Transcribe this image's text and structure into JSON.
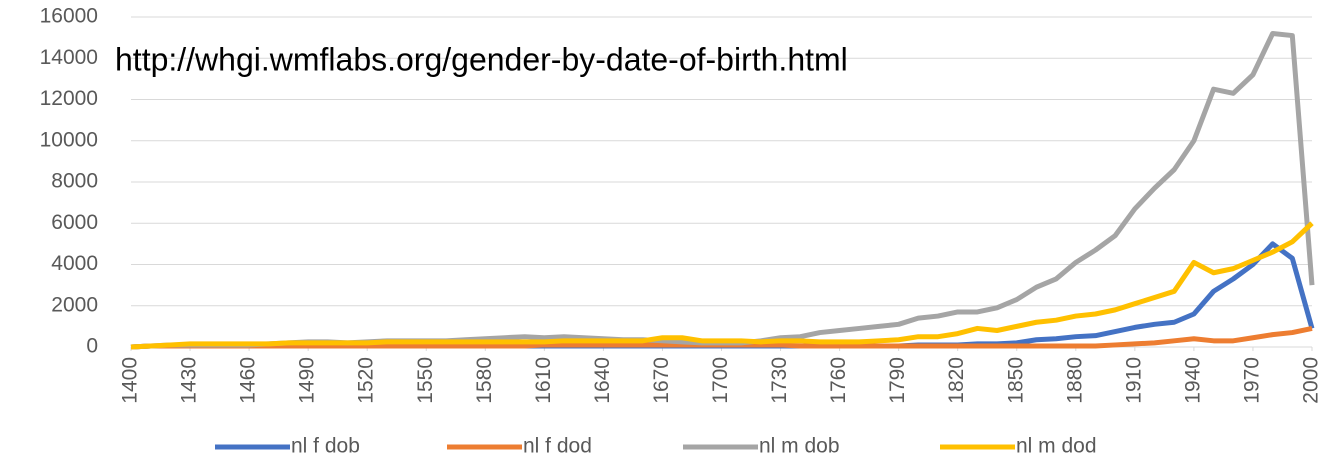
{
  "chart_data": {
    "type": "line",
    "annotation": "http://whgi.wmflabs.org/gender-by-date-of-birth.html",
    "x": [
      1400,
      1410,
      1420,
      1430,
      1440,
      1450,
      1460,
      1470,
      1480,
      1490,
      1500,
      1510,
      1520,
      1530,
      1540,
      1550,
      1560,
      1570,
      1580,
      1590,
      1600,
      1610,
      1620,
      1630,
      1640,
      1650,
      1660,
      1670,
      1680,
      1690,
      1700,
      1710,
      1720,
      1730,
      1740,
      1750,
      1760,
      1770,
      1780,
      1790,
      1800,
      1810,
      1820,
      1830,
      1840,
      1850,
      1860,
      1870,
      1880,
      1890,
      1900,
      1910,
      1920,
      1930,
      1940,
      1950,
      1960,
      1970,
      1980,
      1990,
      2000
    ],
    "series": [
      {
        "name": "nl f dob",
        "color": "#4472c4",
        "values": [
          0,
          50,
          50,
          50,
          50,
          50,
          50,
          50,
          50,
          50,
          50,
          50,
          50,
          50,
          50,
          50,
          50,
          50,
          50,
          50,
          50,
          50,
          50,
          50,
          50,
          50,
          50,
          50,
          50,
          50,
          50,
          50,
          50,
          50,
          50,
          50,
          50,
          50,
          50,
          50,
          100,
          100,
          100,
          150,
          150,
          200,
          350,
          400,
          500,
          550,
          750,
          950,
          1100,
          1200,
          1600,
          2700,
          3300,
          4000,
          5000,
          4300,
          900
        ]
      },
      {
        "name": "nl f dod",
        "color": "#ed7d31",
        "values": [
          0,
          50,
          50,
          50,
          50,
          50,
          50,
          50,
          50,
          50,
          50,
          50,
          50,
          50,
          50,
          50,
          50,
          50,
          50,
          50,
          50,
          100,
          100,
          100,
          100,
          100,
          100,
          100,
          100,
          100,
          100,
          100,
          100,
          100,
          50,
          50,
          50,
          50,
          50,
          50,
          50,
          50,
          50,
          50,
          50,
          50,
          50,
          50,
          50,
          50,
          100,
          150,
          200,
          300,
          400,
          300,
          300,
          450,
          600,
          700,
          900
        ]
      },
      {
        "name": "nl m dob",
        "color": "#a5a5a5",
        "values": [
          0,
          50,
          100,
          100,
          100,
          100,
          100,
          150,
          200,
          250,
          250,
          200,
          250,
          300,
          300,
          300,
          300,
          350,
          400,
          450,
          500,
          450,
          500,
          450,
          400,
          350,
          350,
          300,
          250,
          200,
          200,
          200,
          300,
          450,
          500,
          700,
          800,
          900,
          1000,
          1100,
          1400,
          1500,
          1700,
          1700,
          1900,
          2300,
          2900,
          3300,
          4100,
          4700,
          5400,
          6700,
          7700,
          8600,
          10000,
          12500,
          12300,
          13200,
          15200,
          15100,
          3000
        ]
      },
      {
        "name": "nl m dod",
        "color": "#ffc000",
        "values": [
          0,
          50,
          100,
          150,
          150,
          150,
          150,
          150,
          200,
          200,
          200,
          200,
          200,
          250,
          250,
          250,
          250,
          250,
          250,
          250,
          250,
          250,
          300,
          300,
          300,
          300,
          300,
          450,
          450,
          300,
          300,
          300,
          250,
          300,
          300,
          250,
          250,
          250,
          300,
          350,
          500,
          500,
          650,
          900,
          800,
          1000,
          1200,
          1300,
          1500,
          1600,
          1800,
          2100,
          2400,
          2700,
          4100,
          3600,
          3800,
          4200,
          4600,
          5100,
          6000
        ]
      }
    ],
    "xlim": [
      1400,
      2000
    ],
    "xticks": [
      1400,
      1430,
      1460,
      1490,
      1520,
      1550,
      1580,
      1610,
      1640,
      1670,
      1700,
      1730,
      1760,
      1790,
      1820,
      1850,
      1880,
      1910,
      1940,
      1970,
      2000
    ],
    "ylim": [
      0,
      16000
    ],
    "yticks": [
      0,
      2000,
      4000,
      6000,
      8000,
      10000,
      12000,
      14000,
      16000
    ],
    "grid": true
  }
}
